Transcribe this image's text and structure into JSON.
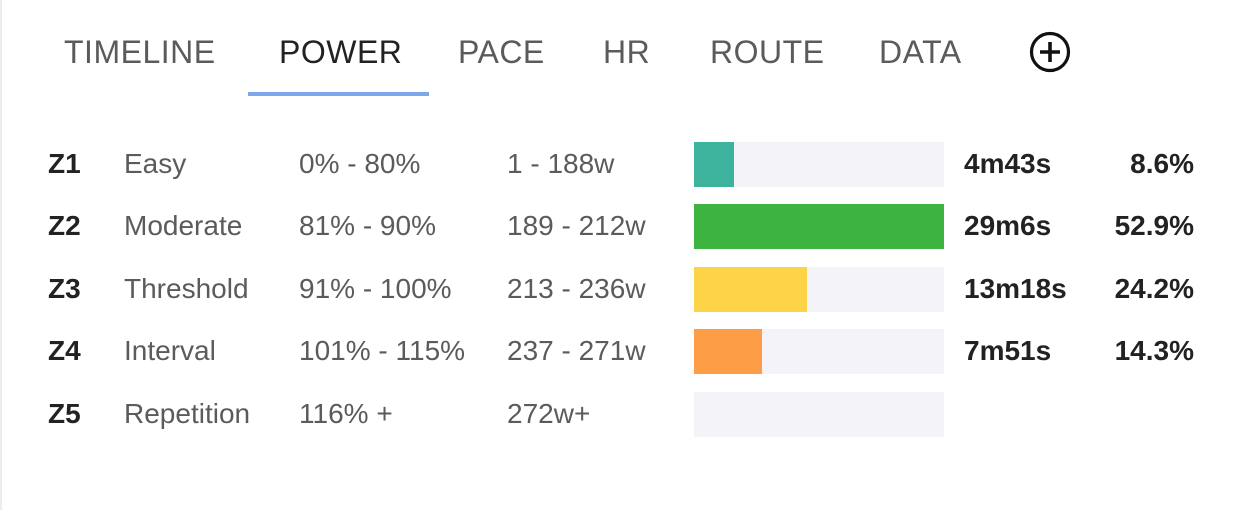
{
  "tabs": [
    {
      "label": "TIMELINE",
      "active": false
    },
    {
      "label": "POWER",
      "active": true
    },
    {
      "label": "PACE",
      "active": false
    },
    {
      "label": "HR",
      "active": false
    },
    {
      "label": "ROUTE",
      "active": false
    },
    {
      "label": "DATA",
      "active": false
    }
  ],
  "add_tab_icon": "plus-circle-icon",
  "zones": [
    {
      "id": "Z1",
      "name": "Easy",
      "pct_range": "0% - 80%",
      "watt_range": "1 - 188w",
      "time": "4m43s",
      "share_label": "8.6%",
      "fill_fraction": 0.16,
      "color": "#3db39e"
    },
    {
      "id": "Z2",
      "name": "Moderate",
      "pct_range": "81% - 90%",
      "watt_range": "189 - 212w",
      "time": "29m6s",
      "share_label": "52.9%",
      "fill_fraction": 1.0,
      "color": "#3cb43f"
    },
    {
      "id": "Z3",
      "name": "Threshold",
      "pct_range": "91% - 100%",
      "watt_range": "213 - 236w",
      "time": "13m18s",
      "share_label": "24.2%",
      "fill_fraction": 0.45,
      "color": "#fdd447"
    },
    {
      "id": "Z4",
      "name": "Interval",
      "pct_range": "101% - 115%",
      "watt_range": "237 - 271w",
      "time": "7m51s",
      "share_label": "14.3%",
      "fill_fraction": 0.27,
      "color": "#fd9e47"
    },
    {
      "id": "Z5",
      "name": "Repetition",
      "pct_range": "116% +",
      "watt_range": "272w+",
      "time": "",
      "share_label": "",
      "fill_fraction": 0,
      "color": "#f3f3f8"
    }
  ]
}
